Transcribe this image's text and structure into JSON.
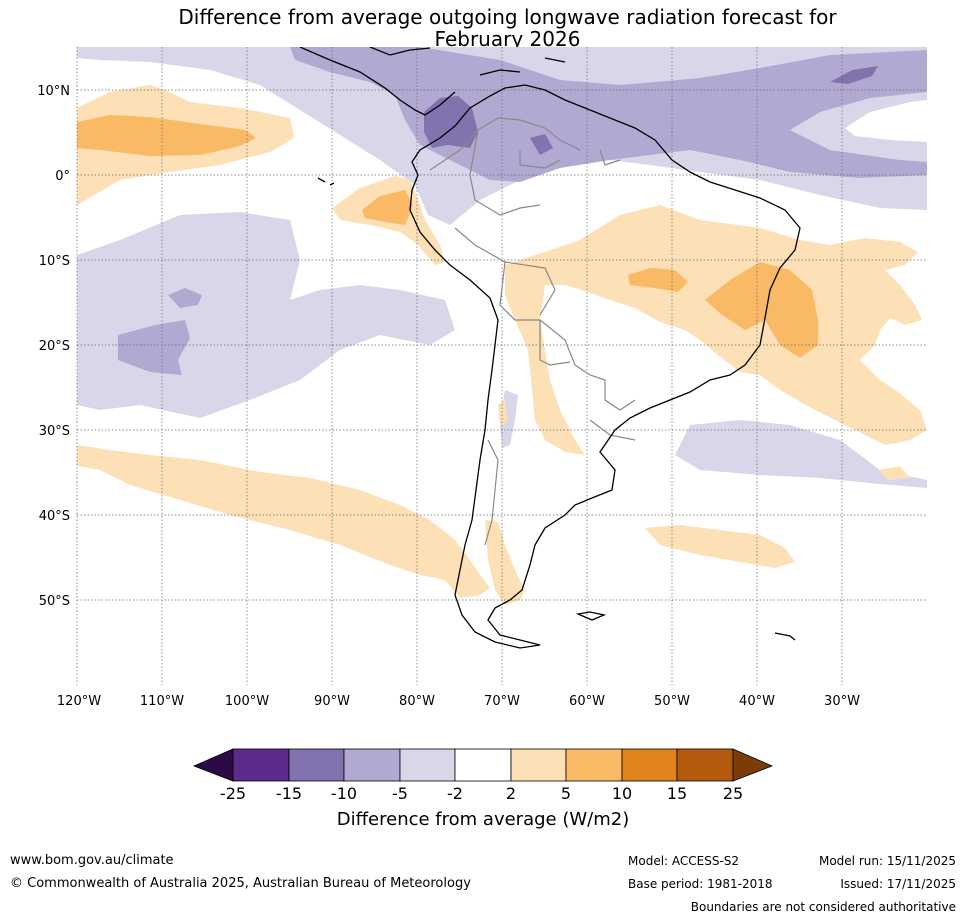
{
  "title": {
    "line1": "Difference from average outgoing longwave radiation forecast for",
    "line2": "February 2026"
  },
  "map": {
    "lat_labels": [
      "10°N",
      "0°",
      "10°S",
      "20°S",
      "30°S",
      "40°S",
      "50°S"
    ],
    "lon_labels": [
      "120°W",
      "110°W",
      "100°W",
      "90°W",
      "80°W",
      "70°W",
      "60°W",
      "50°W",
      "40°W",
      "30°W"
    ],
    "lat_values": [
      10,
      0,
      -10,
      -20,
      -30,
      -40,
      -50
    ],
    "lon_values": [
      -120,
      -110,
      -100,
      -90,
      -80,
      -70,
      -60,
      -50,
      -40,
      -30
    ]
  },
  "colorbar": {
    "ticks": [
      "-25",
      "-15",
      "-10",
      "-5",
      "-2",
      "2",
      "5",
      "10",
      "15",
      "25"
    ],
    "colors": [
      "#2b0a45",
      "#5b2a8a",
      "#8272ae",
      "#b1a9d1",
      "#d8d7e9",
      "#ffffff",
      "#fde0b5",
      "#f9b965",
      "#e0831a",
      "#b35a0e",
      "#7a3d08"
    ],
    "label": "Difference from average (W/m2)"
  },
  "colors": {
    "purple_light": "#d8d7e9",
    "purple_mid": "#b1a9d1",
    "purple_dark": "#8272ae",
    "orange_light": "#fde0b5",
    "orange_mid": "#f9b965",
    "orange_dark": "#e0831a"
  },
  "footer": {
    "url": "www.bom.gov.au/climate",
    "copyright": "© Commonwealth of Australia 2025, Australian Bureau of Meteorology",
    "model": "Model: ACCESS-S2",
    "base_period": "Base period: 1981-2018",
    "model_run": "Model run: 15/11/2025",
    "issued": "Issued: 17/11/2025",
    "disclaimer": "Boundaries are not considered authoritative"
  }
}
